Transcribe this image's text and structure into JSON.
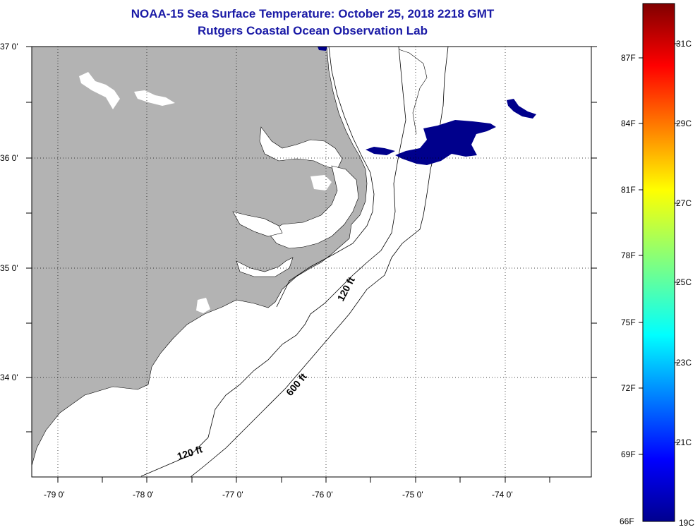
{
  "title": {
    "line1": "NOAA-15 Sea Surface Temperature:  October 25, 2018 2218 GMT",
    "line2": "Rutgers Coastal Ocean Observation Lab"
  },
  "axes": {
    "lat_labels": [
      "37 0'",
      "36 0'",
      "35 0'",
      "34 0'"
    ],
    "lon_labels": [
      "-79 0'",
      "-78 0'",
      "-77 0'",
      "-76 0'",
      "-75 0'",
      "-74 0'"
    ]
  },
  "contours": {
    "label_120_north": "120 ft",
    "label_120_south": "120 ft",
    "label_600": "600 ft"
  },
  "colorbar": {
    "fahrenheit": [
      "87F",
      "84F",
      "81F",
      "78F",
      "75F",
      "72F",
      "69F",
      "66F"
    ],
    "celsius": [
      "31C",
      "29C",
      "27C",
      "25C",
      "23C",
      "21C",
      "19C"
    ]
  },
  "colors": {
    "land": "#b3b3b3",
    "title": "#1a1aa6",
    "sst_patch": "#00008c"
  }
}
